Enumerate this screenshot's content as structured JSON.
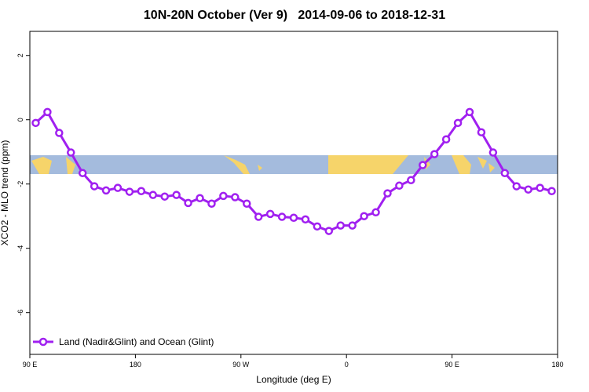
{
  "chart_data": {
    "type": "line",
    "title": "10N-20N October (Ver 9)   2014-09-06 to 2018-12-31",
    "x_label": "Longitude (deg E)",
    "y_label": "XCO2 - MLO trend (ppm)",
    "x": [
      95,
      105,
      115,
      125,
      135,
      145,
      155,
      165,
      175,
      185,
      195,
      205,
      215,
      225,
      235,
      245,
      255,
      265,
      275,
      285,
      295,
      305,
      315,
      325,
      335,
      345,
      355,
      365,
      375,
      385,
      395,
      405,
      415,
      425,
      435,
      445,
      455,
      465,
      475,
      485,
      495,
      505,
      515,
      525,
      535
    ],
    "series": [
      {
        "name": "Land (Nadir&Glint) and Ocean (Glint)",
        "color": "#a020f0",
        "values": [
          -0.1,
          0.24,
          -0.41,
          -1.02,
          -1.66,
          -2.07,
          -2.2,
          -2.12,
          -2.24,
          -2.22,
          -2.34,
          -2.39,
          -2.34,
          -2.59,
          -2.44,
          -2.61,
          -2.37,
          -2.41,
          -2.61,
          -3.02,
          -2.93,
          -3.02,
          -3.05,
          -3.1,
          -3.32,
          -3.46,
          -3.29,
          -3.29,
          -3.0,
          -2.88,
          -2.29,
          -2.05,
          -1.88,
          -1.41,
          -1.07,
          -0.61,
          -0.1,
          0.24,
          -0.39,
          -1.02,
          -1.66,
          -2.07,
          -2.17,
          -2.12,
          -2.22
        ]
      }
    ],
    "xlim": [
      90,
      540
    ],
    "xticks": [
      {
        "value": 90,
        "label": "90 E"
      },
      {
        "value": 180,
        "label": "180"
      },
      {
        "value": 270,
        "label": "90 W"
      },
      {
        "value": 360,
        "label": "0"
      },
      {
        "value": 450,
        "label": "90 E"
      },
      {
        "value": 540,
        "label": "180"
      }
    ],
    "ylim": [
      -7.3,
      2.75
    ],
    "yticks": [
      2,
      0,
      -2,
      -4,
      -6
    ],
    "legend": "bottom-left"
  }
}
